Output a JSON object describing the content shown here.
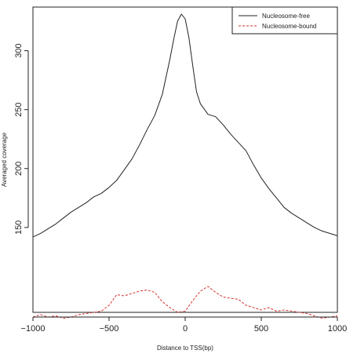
{
  "chart_data": {
    "type": "line",
    "title": "",
    "xlabel": "Distance to TSS(bp)",
    "ylabel": "Averaged coverage",
    "xlim": [
      -1000,
      1000
    ],
    "ylim": [
      78,
      337
    ],
    "xticks": [
      -1000,
      -500,
      0,
      500,
      1000
    ],
    "yticks": [
      150,
      200,
      250,
      300
    ],
    "grid": false,
    "legend_position": "top-right",
    "series": [
      {
        "name": "Nucleosome-free",
        "color": "#222222",
        "style": "solid",
        "x": [
          -1000,
          -950,
          -900,
          -850,
          -800,
          -750,
          -700,
          -650,
          -600,
          -550,
          -500,
          -450,
          -400,
          -350,
          -300,
          -250,
          -200,
          -150,
          -100,
          -75,
          -50,
          -25,
          0,
          25,
          50,
          75,
          100,
          150,
          200,
          250,
          300,
          350,
          400,
          450,
          500,
          550,
          600,
          650,
          700,
          750,
          800,
          850,
          900,
          950,
          1000
        ],
        "y": [
          142,
          145,
          149,
          153,
          158,
          163,
          167,
          171,
          176,
          179,
          184,
          190,
          199,
          208,
          220,
          233,
          245,
          263,
          293,
          310,
          325,
          331,
          327,
          311,
          287,
          265,
          255,
          246,
          244,
          237,
          229,
          222,
          215,
          203,
          192,
          183,
          175,
          167,
          162,
          158,
          154,
          150,
          147,
          145,
          143
        ]
      },
      {
        "name": "Nucleosome-bound",
        "color": "#d83030",
        "style": "dashed",
        "x": [
          -1000,
          -950,
          -900,
          -850,
          -800,
          -750,
          -700,
          -650,
          -600,
          -550,
          -500,
          -450,
          -400,
          -350,
          -300,
          -250,
          -200,
          -150,
          -100,
          -50,
          0,
          50,
          100,
          150,
          200,
          250,
          300,
          350,
          400,
          450,
          500,
          550,
          600,
          650,
          700,
          750,
          800,
          850,
          900,
          950,
          1000
        ],
        "y": [
          74,
          76,
          74,
          75,
          73,
          74,
          76,
          77,
          78,
          79,
          84,
          93,
          92,
          94,
          96,
          97,
          95,
          87,
          82,
          78,
          79,
          88,
          96,
          100,
          95,
          91,
          90,
          89,
          84,
          82,
          80,
          82,
          79,
          80,
          79,
          78,
          77,
          75,
          73,
          74,
          75
        ]
      }
    ]
  }
}
